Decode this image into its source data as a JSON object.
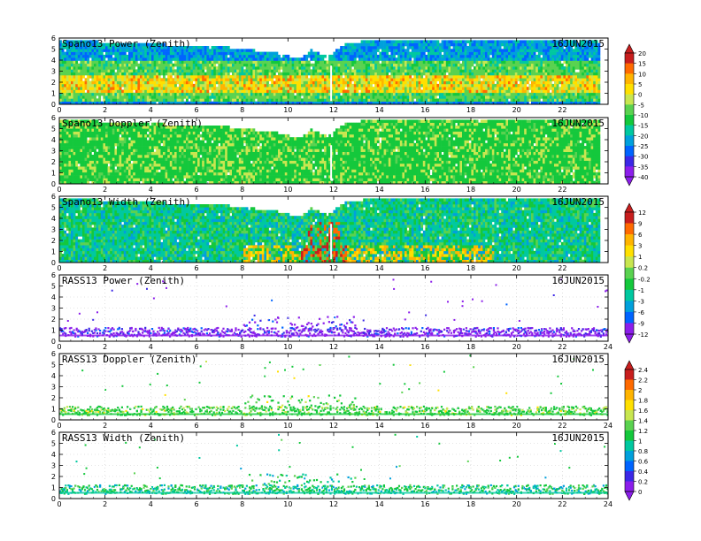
{
  "chart_data": [
    {
      "type": "heatmap",
      "title": "Spano13 Power (Zenith)",
      "date": "16JUN2015",
      "xlim": [
        0,
        24
      ],
      "ylim": [
        0,
        6
      ],
      "x_ticks": [
        "0",
        "2",
        "4",
        "6",
        "8",
        "10",
        "12",
        "14",
        "16",
        "18",
        "20",
        "22"
      ],
      "y_ticks": [
        "0",
        "1",
        "2",
        "3",
        "4",
        "5",
        "6"
      ],
      "colorbar_ticks": [
        "20",
        "15",
        "10",
        "5",
        "0",
        "-5",
        "-10",
        "-15",
        "-20",
        "-25",
        "-30",
        "-35",
        "-40"
      ],
      "colorbar_values": [
        20,
        15,
        10,
        5,
        0,
        -5,
        -10,
        -15,
        -20,
        -25,
        -30,
        -35,
        -40
      ],
      "data_x_range": [
        0,
        23.9
      ],
      "coverage_top_km": [
        [
          0,
          5.7
        ],
        [
          7.6,
          5.0
        ],
        [
          9.5,
          4.5
        ],
        [
          10.5,
          4.0
        ],
        [
          11.0,
          4.8
        ],
        [
          11.7,
          4.2
        ],
        [
          12.5,
          5.4
        ],
        [
          14.3,
          5.8
        ],
        [
          23.9,
          5.8
        ]
      ]
    },
    {
      "type": "heatmap",
      "title": "Spano13 Doppler (Zenith)",
      "date": "16JUN2015",
      "xlim": [
        0,
        24
      ],
      "ylim": [
        0,
        6
      ],
      "x_ticks": [
        "0",
        "2",
        "4",
        "6",
        "8",
        "10",
        "12",
        "14",
        "16",
        "18",
        "20",
        "22"
      ],
      "y_ticks": [
        "0",
        "1",
        "2",
        "3",
        "4",
        "5",
        "6"
      ],
      "data_x_range": [
        0,
        23.9
      ],
      "coverage_top_km": [
        [
          0,
          5.7
        ],
        [
          7.6,
          5.0
        ],
        [
          9.5,
          4.5
        ],
        [
          10.5,
          4.0
        ],
        [
          11.0,
          4.8
        ],
        [
          11.7,
          4.2
        ],
        [
          12.5,
          5.4
        ],
        [
          14.3,
          5.8
        ],
        [
          23.9,
          5.8
        ]
      ]
    },
    {
      "type": "heatmap",
      "title": "Spano13 Width (Zenith)",
      "date": "16JUN2015",
      "xlim": [
        0,
        24
      ],
      "ylim": [
        0,
        6
      ],
      "x_ticks": [
        "0",
        "2",
        "4",
        "6",
        "8",
        "10",
        "12",
        "14",
        "16",
        "18",
        "20",
        "22"
      ],
      "y_ticks": [
        "0",
        "1",
        "2",
        "3",
        "4",
        "5",
        "6"
      ],
      "colorbar_ticks": [
        "12",
        "9",
        "6",
        "3",
        "1",
        "0.2",
        "-0.2",
        "-1",
        "-3",
        "-6",
        "-9",
        "-12"
      ],
      "colorbar_values": [
        12,
        9,
        6,
        3,
        1,
        0.2,
        -0.2,
        -1,
        -3,
        -6,
        -9,
        -12
      ],
      "data_x_range": [
        0,
        23.9
      ],
      "coverage_top_km": [
        [
          0,
          5.7
        ],
        [
          7.6,
          5.0
        ],
        [
          9.5,
          4.5
        ],
        [
          10.5,
          4.0
        ],
        [
          11.0,
          4.8
        ],
        [
          11.7,
          4.2
        ],
        [
          12.5,
          5.4
        ],
        [
          14.3,
          5.8
        ],
        [
          23.9,
          5.8
        ]
      ]
    },
    {
      "type": "scatter",
      "title": "RASS13 Power (Zenith)",
      "date": "16JUN2015",
      "xlim": [
        0,
        24
      ],
      "ylim": [
        0,
        6
      ],
      "x_ticks": [
        "0",
        "2",
        "4",
        "6",
        "8",
        "10",
        "12",
        "14",
        "16",
        "18",
        "20",
        "22",
        "24"
      ],
      "y_ticks": [
        "0",
        "1",
        "2",
        "3",
        "4",
        "5",
        "6"
      ],
      "dense_layer_km": [
        0.5,
        1.6
      ],
      "colorbar_ticks": [
        "2.4",
        "2.2",
        "2",
        "1.8",
        "1.6",
        "1.4",
        "1.2",
        "1",
        "0.8",
        "0.6",
        "0.4",
        "0.2",
        "0"
      ],
      "colorbar_values": [
        2.4,
        2.2,
        2,
        1.8,
        1.6,
        1.4,
        1.2,
        1,
        0.8,
        0.6,
        0.4,
        0.2,
        0
      ]
    },
    {
      "type": "scatter",
      "title": "RASS13 Doppler (Zenith)",
      "date": "16JUN2015",
      "xlim": [
        0,
        24
      ],
      "ylim": [
        0,
        6
      ],
      "x_ticks": [
        "0",
        "2",
        "4",
        "6",
        "8",
        "10",
        "12",
        "14",
        "16",
        "18",
        "20",
        "22",
        "24"
      ],
      "y_ticks": [
        "0",
        "1",
        "2",
        "3",
        "4",
        "5",
        "6"
      ],
      "dense_layer_km": [
        0.5,
        1.6
      ]
    },
    {
      "type": "scatter",
      "title": "RASS13 Width (Zenith)",
      "date": "16JUN2015",
      "xlim": [
        0,
        24
      ],
      "ylim": [
        0,
        6
      ],
      "x_ticks": [
        "0",
        "2",
        "4",
        "6",
        "8",
        "10",
        "12",
        "14",
        "16",
        "18",
        "20",
        "22",
        "24"
      ],
      "y_ticks": [
        "0",
        "1",
        "2",
        "3",
        "4",
        "5",
        "6"
      ],
      "dense_layer_km": [
        0.5,
        1.6
      ]
    }
  ],
  "colors": {
    "power_scale": [
      "#c81e1e",
      "#ff6a00",
      "#ffb400",
      "#ffe000",
      "#c8e650",
      "#5ad250",
      "#14c83c",
      "#00c8a0",
      "#00a0dc",
      "#0064ff",
      "#3c28e6",
      "#8c1eeb"
    ],
    "width_scale": [
      "#c81e1e",
      "#ff6a00",
      "#ffb400",
      "#ffe000",
      "#c8e650",
      "#5ad250",
      "#14c83c",
      "#00c8a0",
      "#00a0dc",
      "#0064ff",
      "#8c1eeb"
    ],
    "rass_scale": [
      "#c81e1e",
      "#ff6a00",
      "#ffb400",
      "#ffe000",
      "#c8e650",
      "#5ad250",
      "#14c83c",
      "#00c8a0",
      "#00a0dc",
      "#0064ff",
      "#3c28e6",
      "#8c1eeb"
    ]
  }
}
